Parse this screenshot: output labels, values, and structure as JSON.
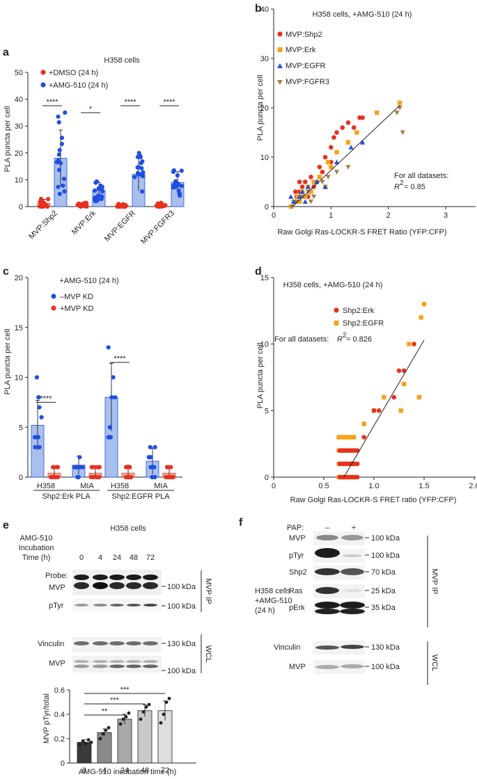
{
  "colors": {
    "red": "#e8301f",
    "blue": "#1f4fe0",
    "orange": "#f5a31a",
    "brown": "#a27e49",
    "bar_fill_blue": "#a9c0ee",
    "bar_fill_red": "#f3b5ab",
    "blot_dark": "#1c1c1c",
    "blot_light": "#b5b5b5"
  },
  "chart_data": [
    {
      "panel": "a",
      "type": "bar",
      "title": "H358 cells",
      "ylabel": "PLA puncta per cell",
      "ylim": [
        0,
        50
      ],
      "yticks": [
        "0",
        "10",
        "20",
        "30",
        "40",
        "50"
      ],
      "categories": [
        "MVP:Shp2",
        "MVP:Erk",
        "MVP:EGFR",
        "MVP:FGFR3"
      ],
      "series": [
        {
          "name": "+DMSO (24 h)",
          "color": "red",
          "values": [
            1.2,
            0.6,
            0.5,
            0.6
          ],
          "errors": [
            1.5,
            0.8,
            0.7,
            0.7
          ]
        },
        {
          "name": "+AMG-510 (24 h)",
          "color": "blue",
          "values": [
            18,
            6,
            12,
            9
          ],
          "errors": [
            10.5,
            3,
            6,
            4
          ]
        }
      ],
      "significance": [
        "****",
        "*",
        "****",
        "****"
      ]
    },
    {
      "panel": "b",
      "type": "scatter",
      "title": "H358 cells, +AMG-510 (24 h)",
      "xlabel": "Raw Golgi Ras-LOCKR-S FRET Ratio (YFP:CFP)",
      "ylabel": "PLA puncta per cell",
      "xlim": [
        0,
        3
      ],
      "ylim": [
        0,
        40
      ],
      "xticks": [
        "0",
        "1",
        "2",
        "3"
      ],
      "yticks": [
        "0",
        "10",
        "20",
        "30",
        "40"
      ],
      "legend": [
        "MVP:Shp2",
        "MVP:Erk",
        "MVP:EGFR",
        "MVP:FGFR3"
      ],
      "annotation_1": "For all datasets:",
      "annotation_2": "= 0.85",
      "r2_symbol": "R",
      "fit_line": [
        [
          0.33,
          0
        ],
        [
          2.2,
          20.5
        ]
      ]
    },
    {
      "panel": "c",
      "type": "bar",
      "title": "+AMG-510 (24 h)",
      "ylabel": "PLA puncta per cell",
      "ylim": [
        0,
        20
      ],
      "yticks": [
        "0",
        "5",
        "10",
        "15",
        "20"
      ],
      "categories": [
        "H358",
        "MIA",
        "H358",
        "MIA"
      ],
      "groups": [
        "Shp2:Erk PLA",
        "Shp2:EGFR PLA"
      ],
      "series": [
        {
          "name": "–MVP KD",
          "color": "blue",
          "values": [
            5.2,
            1.2,
            8.0,
            1.6
          ],
          "errors": [
            2.5,
            0.9,
            3.4,
            1.3
          ]
        },
        {
          "name": "+MVP KD",
          "color": "red",
          "values": [
            0.4,
            0.4,
            0.4,
            0.4
          ],
          "errors": [
            0.7,
            0.7,
            0.8,
            0.7
          ]
        }
      ],
      "significance": [
        "****",
        "",
        "****",
        ""
      ]
    },
    {
      "panel": "d",
      "type": "scatter",
      "title": "H358 cells, +AMG-510 (24 h)",
      "xlabel": "Raw Golgi Ras-LOCKR-S FRET ratio (YFP:CFP)",
      "ylabel": "PLA puncta per cell",
      "xlim": [
        0,
        2
      ],
      "ylim": [
        0,
        15
      ],
      "xticks": [
        "0",
        "0.5",
        "1.0",
        "1.5",
        "2.0"
      ],
      "yticks": [
        "0",
        "5",
        "10",
        "15"
      ],
      "legend": [
        "Shp2:Erk",
        "Shp2:EGFR"
      ],
      "annotation": "For all datasets:",
      "annotation_2": "= 0.826",
      "r2_symbol": "R",
      "fit_line": [
        [
          0.7,
          0
        ],
        [
          1.5,
          10.3
        ]
      ]
    },
    {
      "panel": "e-quant",
      "type": "bar",
      "ylabel": "MVP pTyr/total",
      "xlabel": "AMG-510 incubation time (h)",
      "ylim": [
        0,
        0.6
      ],
      "yticks": [
        "0",
        "0.2",
        "0.4",
        "0.6"
      ],
      "categories": [
        "0",
        "4",
        "24",
        "48",
        "72"
      ],
      "values": [
        0.17,
        0.25,
        0.36,
        0.43,
        0.43
      ],
      "errors": [
        0.02,
        0.03,
        0.04,
        0.05,
        0.08
      ],
      "fills": [
        "#3a3a3a",
        "#8a8a8a",
        "#a8a8a8",
        "#c9c9c9",
        "#dedede"
      ],
      "significance": [
        {
          "from": "0",
          "to": "24",
          "label": "**"
        },
        {
          "from": "0",
          "to": "48",
          "label": "***"
        },
        {
          "from": "0",
          "to": "72",
          "label": "***"
        }
      ]
    }
  ],
  "panel_e": {
    "label": "e",
    "title": "H358 cells",
    "header_line1": "AMG-510",
    "header_line2": "Incubation",
    "header_line3": "Time (h)",
    "times": [
      "0",
      "4",
      "24",
      "48",
      "72"
    ],
    "probe_label_1": "Probe:",
    "probe_label_2": "MVP",
    "ptyr_label": "pTyr",
    "vinculin_label": "Vinculin",
    "mvp_label": "MVP",
    "kda_100": "100 kDa",
    "kda_130": "130 kDa",
    "ip_label": "MVP IP",
    "wcl_label": "WCL"
  },
  "panel_f": {
    "label": "f",
    "pap_label": "PAP:",
    "pap_minus": "–",
    "pap_plus": "+",
    "cells_line1": "H358 cells",
    "cells_line2": "+AMG-510",
    "cells_line3": "(24 h)",
    "rows_ip": [
      "MVP",
      "pTyr",
      "Shp2",
      "Ras",
      "pErk"
    ],
    "kda_ip": [
      "100 kDa",
      "100 kDa",
      "70 kDa",
      "25 kDa",
      "35 kDa"
    ],
    "rows_wcl": [
      "Vinculin",
      "MVP"
    ],
    "kda_wcl": [
      "130 kDa",
      "100 kDa"
    ],
    "ip_label": "MVP IP",
    "wcl_label": "WCL"
  }
}
